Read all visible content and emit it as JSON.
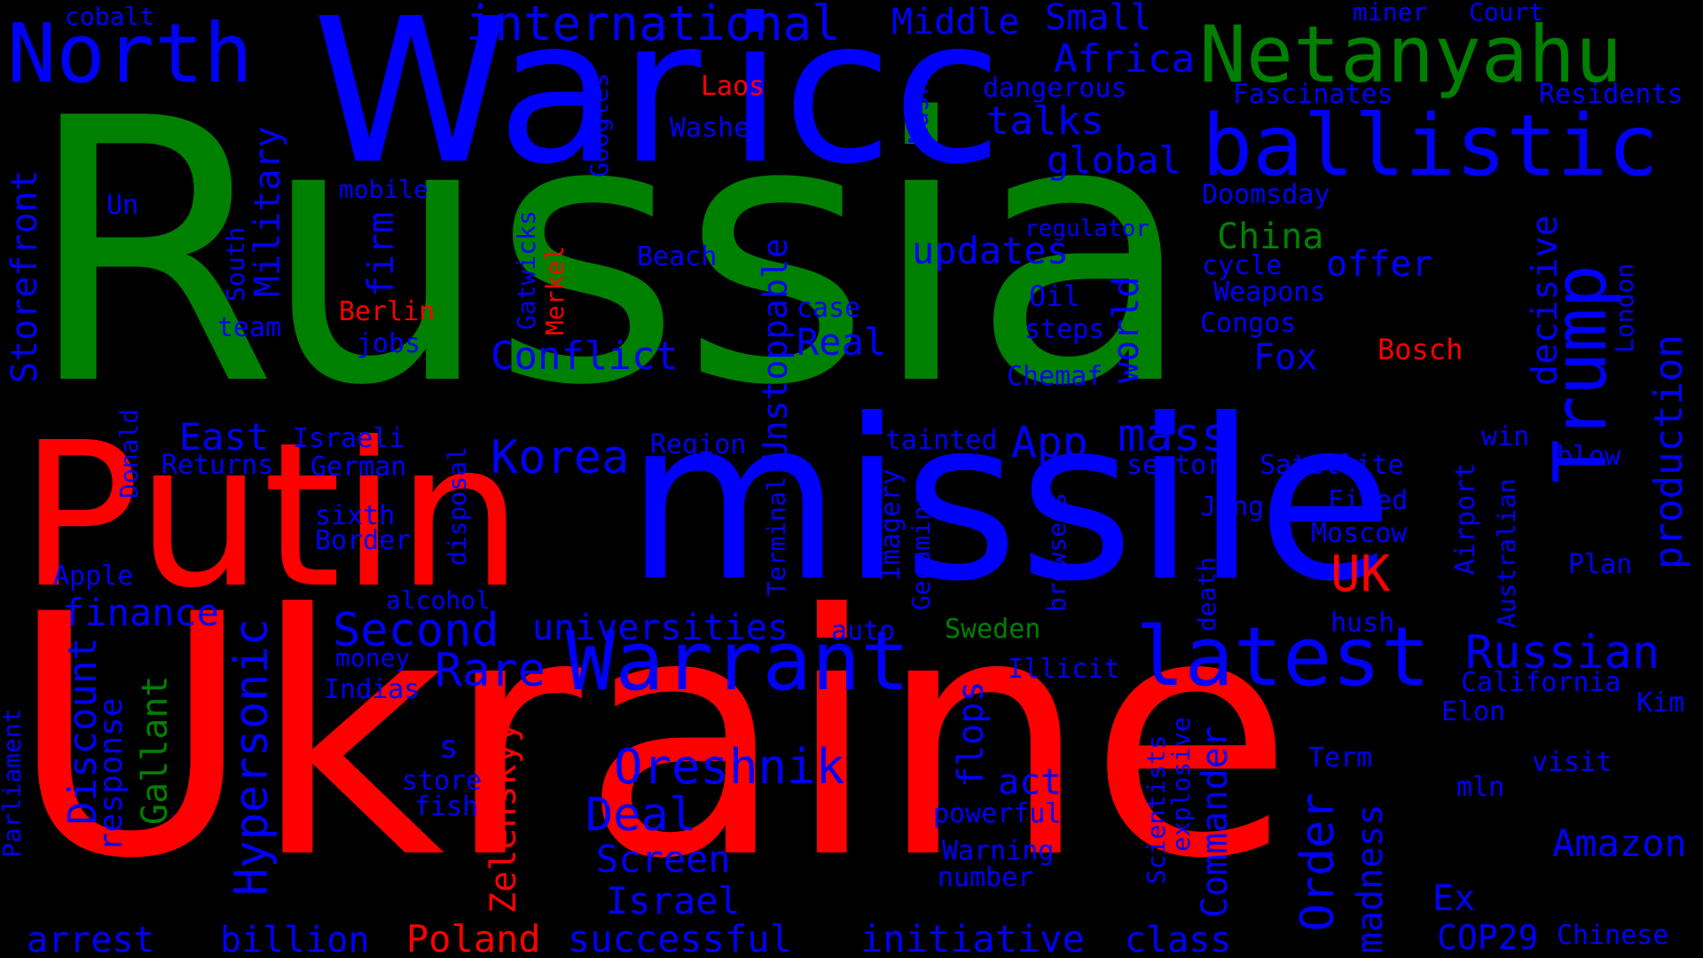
{
  "colors": {
    "background": "#000000",
    "green": "#008000",
    "red": "#ff0000",
    "blue": "#0000ff"
  },
  "words": {
    "russia": "Russia",
    "ukraine": "Ukraine",
    "missile": "missile",
    "putin": "Putin",
    "war": "War",
    "icc": "icc",
    "netanyahu": "Netanyahu",
    "ballistic": "ballistic",
    "north": "North",
    "international": "international",
    "middle": "Middle",
    "small": "Small",
    "miner": "miner",
    "court": "Court",
    "cobalt": "cobalt",
    "africa": "Africa",
    "laos": "Laos",
    "dangerous": "dangerous",
    "fascinates": "Fascinates",
    "residents": "Residents",
    "washes": "Washes",
    "googles": "Googles",
    "musk": "Musk",
    "talks": "talks",
    "global": "global",
    "storefront": "Storefront",
    "military": "Military",
    "mobile": "mobile",
    "un": "Un",
    "doomsday": "Doomsday",
    "trump": "Trump",
    "regulator": "regulator",
    "china": "China",
    "south": "South",
    "firm": "firm",
    "gatwicks": "Gatwicks",
    "merkel": "Merkel",
    "beach": "Beach",
    "updates": "updates",
    "unstoppable": "Unstoppable",
    "decisive": "decisive",
    "production": "production",
    "cycle": "cycle",
    "offer": "offer",
    "weapons": "Weapons",
    "london": "London",
    "oil": "Oil",
    "world": "world",
    "berlin": "Berlin",
    "team": "team",
    "case": "case",
    "congos": "Congos",
    "bosch": "Bosch",
    "jobs": "jobs",
    "steps": "steps",
    "conflict": "Conflict",
    "real": "Real",
    "fox": "Fox",
    "chemaf": "Chemaf",
    "donald": "Donald",
    "app": "App",
    "mass": "mass",
    "east": "East",
    "israeli": "Israeli",
    "region": "Region",
    "tainted": "tainted",
    "win": "win",
    "blow": "blow",
    "returns": "Returns",
    "german": "German",
    "korea": "Korea",
    "terminal": "Terminal",
    "imagery": "Imagery",
    "sector": "sector",
    "satellite": "Satellite",
    "disposal": "disposal",
    "gecamines": "Gecamines",
    "airport": "Airport",
    "fired": "Fired",
    "jong": "Jong",
    "sixth": "sixth",
    "browsers": "browsers",
    "australian": "Australian",
    "border": "Border",
    "moscow": "Moscow",
    "death": "death",
    "uk": "UK",
    "plan": "Plan",
    "apple": "Apple",
    "alcohol": "alcohol",
    "hypersonic": "Hypersonic",
    "finance": "finance",
    "second": "Second",
    "universities": "universities",
    "auto": "auto",
    "sweden": "Sweden",
    "hush": "hush",
    "warrant": "Warrant",
    "latest": "latest",
    "russian": "Russian",
    "discount": "Discount",
    "gallant": "Gallant",
    "money": "money",
    "rare": "Rare",
    "illicit": "Illicit",
    "california": "California",
    "indias": "Indias",
    "elon": "Elon",
    "kim": "Kim",
    "parliament": "Parliament",
    "response": "response",
    "s": "s",
    "zelenskyy": "Zelenskyy",
    "oreshnik": "Oreshnik",
    "flops": "flops",
    "scientists": "Scientists",
    "explosive": "explosive",
    "commander": "Commander",
    "term": "Term",
    "visit": "visit",
    "mln": "mln",
    "store": "store",
    "act": "act",
    "fish": "fish",
    "deal": "Deal",
    "powerful": "powerful",
    "order": "Order",
    "madness": "madness",
    "amazon": "Amazon",
    "warning": "Warning",
    "number": "number",
    "screen": "Screen",
    "israel": "Israel",
    "ex": "Ex",
    "arrest": "arrest",
    "billion": "billion",
    "poland": "Poland",
    "successful": "successful",
    "initiative": "initiative",
    "class": "class",
    "cop29": "COP29",
    "chinese": "Chinese"
  }
}
